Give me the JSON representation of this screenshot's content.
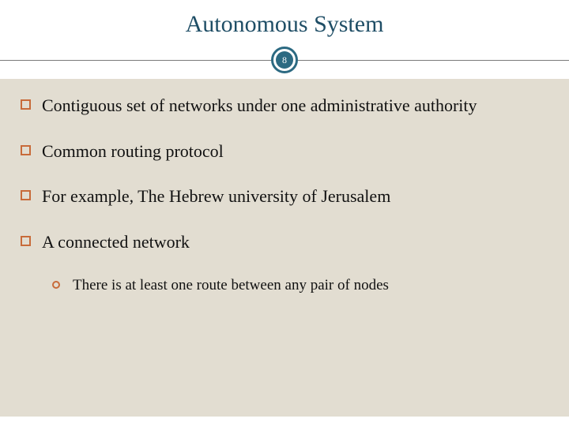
{
  "slide": {
    "title": "Autonomous System",
    "page_number": "8",
    "bullets": [
      {
        "text": "Contiguous set of networks under one administrative authority"
      },
      {
        "text": "Common routing protocol"
      },
      {
        "text": "For example, The Hebrew university of Jerusalem"
      },
      {
        "text": "A connected network"
      }
    ],
    "sub_bullets": [
      {
        "text": "There is at least one route between any pair of nodes"
      }
    ]
  },
  "style": {
    "title_color": "#1f4e66",
    "title_fontsize": 30,
    "badge_border_color": "#2c6a82",
    "badge_fill_color": "#2c6a82",
    "badge_text_color": "#ffffff",
    "content_bg": "#e2ddd1",
    "bullet_border_color": "#c86b3a",
    "bullet_text_color": "#111111",
    "bullet_fontsize": 22,
    "sub_bullet_fontsize": 19,
    "divider_color": "#7a7a7a",
    "page_bg": "#ffffff"
  }
}
